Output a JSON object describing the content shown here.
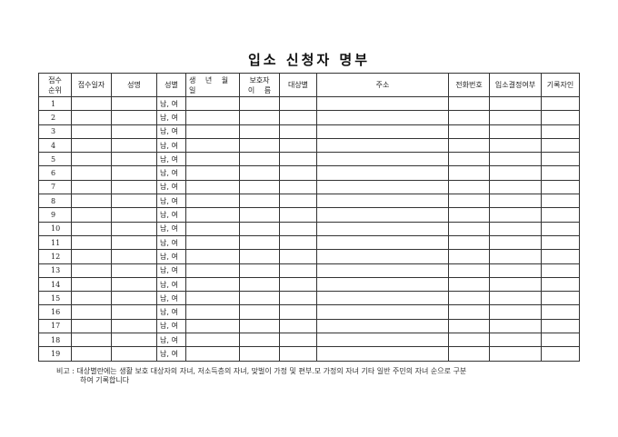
{
  "title": "입소 신청자 명부",
  "headers": {
    "order_line1": "접수",
    "order_line2": "순위",
    "date": "접수일자",
    "name": "성명",
    "sex": "성별",
    "birth": "생 년 월 일",
    "guardian_line1": "보호자",
    "guardian_line2": "이 름",
    "category": "대상별",
    "address": "주소",
    "phone": "전화번호",
    "decision": "입소결정여부",
    "recorder": "기록자인"
  },
  "rows": [
    "1",
    "2",
    "3",
    "4",
    "5",
    "6",
    "7",
    "8",
    "9",
    "10",
    "11",
    "12",
    "13",
    "14",
    "15",
    "16",
    "17",
    "18",
    "19"
  ],
  "sex_text": "남, 여",
  "note_line1": "비고 : 대상별란에는 생활 보호 대상자의 자녀, 저소득층의 자녀, 맞벌이 가정 및 편부.모 가정의 자녀  기타 일반 주민의 자녀 순으로 구분",
  "note_line2": "하여 기록합니다"
}
